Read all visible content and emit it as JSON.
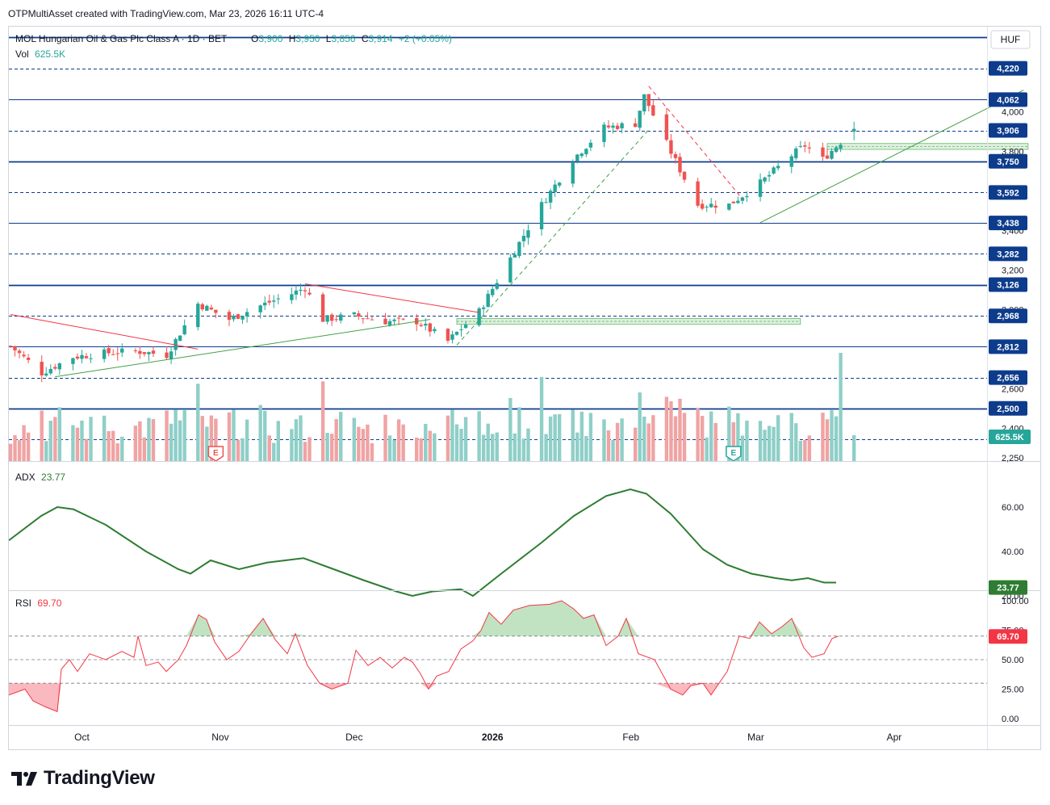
{
  "attribution": "OTPMultiAsset created with TradingView.com, Mar 23, 2026 16:11 UTC-4",
  "footer_brand": "TradingView",
  "colors": {
    "up": "#26a69a",
    "down": "#ef5350",
    "vol_up": "#8fcfc8",
    "vol_down": "#f0a3a3",
    "adx": "#2e7d32",
    "rsi": "#f23645",
    "level": "#0d3c8c",
    "zone": "#c8e6c9",
    "axis": "#131722"
  },
  "legend": {
    "symbol": "MOL Hungarian Oil & Gas Plc Class A · 1D · BET",
    "o_label": "O",
    "o_value": "3,900",
    "h_label": "H",
    "h_value": "3,950",
    "l_label": "L",
    "l_value": "3,856",
    "c_label": "C",
    "c_value": "3,914",
    "change": "+2 (+0.05%)",
    "vol_label": "Vol",
    "vol_value": "625.5K"
  },
  "currency": "HUF",
  "price_axis_ticks": [
    "4,000",
    "3,800",
    "3,400",
    "3,200",
    "3,000",
    "2,600",
    "2,400",
    "2,250"
  ],
  "levels": [
    {
      "value": 4220,
      "label": "4,220",
      "style": "dashed"
    },
    {
      "value": 4062,
      "label": "4,062",
      "style": "solid"
    },
    {
      "value": 3906,
      "label": "3,906",
      "style": "dashed"
    },
    {
      "value": 3750,
      "label": "3,750",
      "style": "bold"
    },
    {
      "value": 3592,
      "label": "3,592",
      "style": "dashed"
    },
    {
      "value": 3438,
      "label": "3,438",
      "style": "solid"
    },
    {
      "value": 3282,
      "label": "3,282",
      "style": "dashed"
    },
    {
      "value": 3126,
      "label": "3,126",
      "style": "bold"
    },
    {
      "value": 2968,
      "label": "2,968",
      "style": "dashed"
    },
    {
      "value": 2812,
      "label": "2,812",
      "style": "solid"
    },
    {
      "value": 2656,
      "label": "2,656",
      "style": "dashed"
    },
    {
      "value": 2500,
      "label": "2,500",
      "style": "bold"
    },
    {
      "value": 2344,
      "label": "",
      "style": "dashed"
    }
  ],
  "top_level": {
    "value": 4378,
    "style": "bold"
  },
  "vol_badge": "625.5K",
  "earnings_marker": "E",
  "adx": {
    "label": "ADX",
    "value": "23.77",
    "axis_ticks": [
      "60.00",
      "40.00",
      "20.00"
    ]
  },
  "rsi": {
    "label": "RSI",
    "value": "69.70",
    "axis_ticks": [
      "100.00",
      "75.00",
      "50.00",
      "25.00",
      "0.00"
    ]
  },
  "time_labels": [
    "Oct",
    "Nov",
    "Dec",
    "2026",
    "Feb",
    "Mar",
    "Apr"
  ],
  "chart_data": {
    "type": "candlestick",
    "series_anchors_date_price": [
      [
        "2025-09-15",
        2815
      ],
      [
        "2025-09-22",
        2680
      ],
      [
        "2025-09-29",
        2760
      ],
      [
        "2025-10-06",
        2780
      ],
      [
        "2025-10-13",
        2790
      ],
      [
        "2025-10-20",
        2770
      ],
      [
        "2025-10-27",
        3030
      ],
      [
        "2025-11-03",
        2950
      ],
      [
        "2025-11-10",
        3020
      ],
      [
        "2025-11-17",
        3080
      ],
      [
        "2025-11-20",
        3110
      ],
      [
        "2025-11-24",
        2950
      ],
      [
        "2025-12-01",
        2970
      ],
      [
        "2025-12-08",
        2940
      ],
      [
        "2025-12-15",
        2940
      ],
      [
        "2025-12-22",
        2840
      ],
      [
        "2025-12-29",
        2990
      ],
      [
        "2026-01-05",
        3260
      ],
      [
        "2026-01-12",
        3530
      ],
      [
        "2026-01-19",
        3760
      ],
      [
        "2026-01-26",
        3920
      ],
      [
        "2026-02-02",
        3940
      ],
      [
        "2026-02-04",
        4080
      ],
      [
        "2026-02-09",
        3840
      ],
      [
        "2026-02-16",
        3530
      ],
      [
        "2026-02-23",
        3530
      ],
      [
        "2026-03-02",
        3640
      ],
      [
        "2026-03-09",
        3780
      ],
      [
        "2026-03-12",
        3830
      ],
      [
        "2026-03-16",
        3760
      ],
      [
        "2026-03-23",
        3914
      ]
    ],
    "last": {
      "open": 3900,
      "high": 3950,
      "low": 3856,
      "close": 3914,
      "change": 2,
      "change_pct": 0.05
    },
    "volume_last": "625.5K",
    "adx_last": 23.77,
    "rsi_last": 69.7,
    "y_range": [
      2250,
      4400
    ],
    "x_range": [
      "2025-09-15",
      "2026-04-30"
    ]
  }
}
